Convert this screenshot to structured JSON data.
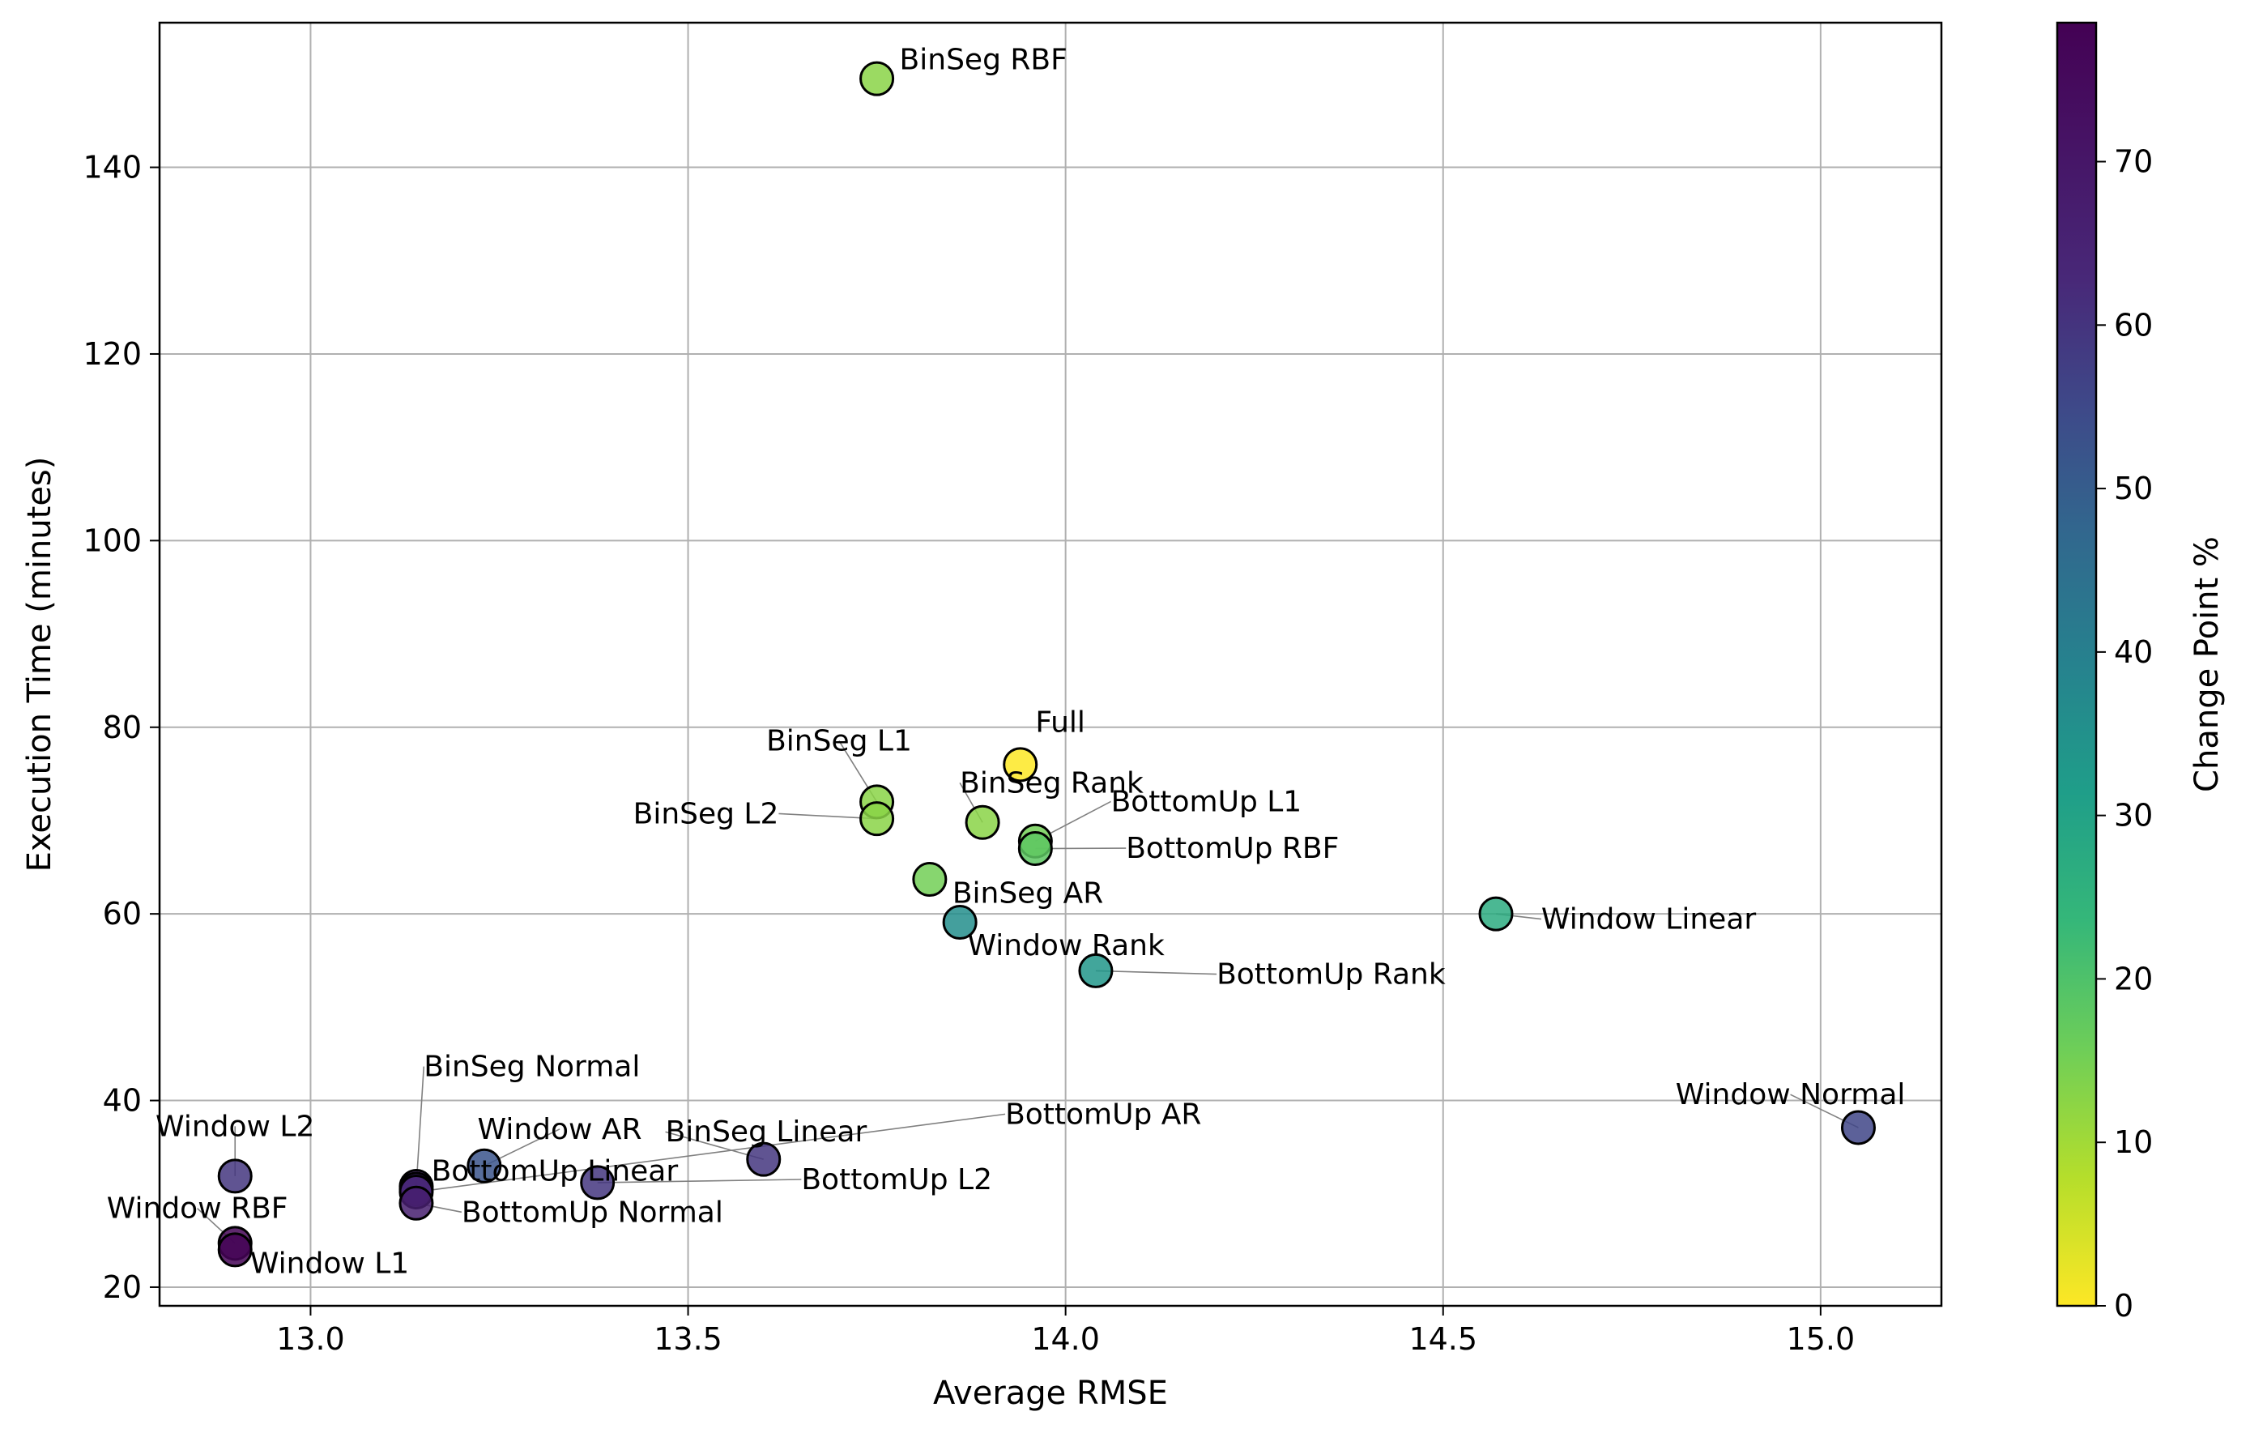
{
  "chart_data": {
    "type": "scatter",
    "xlabel": "Average RMSE",
    "ylabel": "Execution Time (minutes)",
    "xlim": [
      12.8,
      15.16
    ],
    "ylim": [
      18,
      155.5
    ],
    "x_ticks": [
      {
        "value": 13.0,
        "label": "13.0"
      },
      {
        "value": 13.5,
        "label": "13.5"
      },
      {
        "value": 14.0,
        "label": "14.0"
      },
      {
        "value": 14.5,
        "label": "14.5"
      },
      {
        "value": 15.0,
        "label": "15.0"
      }
    ],
    "y_ticks": [
      {
        "value": 20,
        "label": "20"
      },
      {
        "value": 40,
        "label": "40"
      },
      {
        "value": 60,
        "label": "60"
      },
      {
        "value": 80,
        "label": "80"
      },
      {
        "value": 100,
        "label": "100"
      },
      {
        "value": 120,
        "label": "120"
      },
      {
        "value": 140,
        "label": "140"
      }
    ],
    "grid": true,
    "colorbar": {
      "label": "Change Point %",
      "colormap": "viridis_r",
      "range": [
        0,
        78.5
      ],
      "ticks": [
        {
          "value": 0,
          "label": "0"
        },
        {
          "value": 10,
          "label": "10"
        },
        {
          "value": 20,
          "label": "20"
        },
        {
          "value": 30,
          "label": "30"
        },
        {
          "value": 40,
          "label": "40"
        },
        {
          "value": 50,
          "label": "50"
        },
        {
          "value": 60,
          "label": "60"
        },
        {
          "value": 70,
          "label": "70"
        }
      ]
    },
    "points": [
      {
        "label": "Full",
        "x": 13.94,
        "y": 76.0,
        "change_point_pct": 0,
        "label_anchor": [
          13.96,
          79.5
        ],
        "label_side": "right"
      },
      {
        "label": "BinSeg RBF",
        "x": 13.75,
        "y": 149.5,
        "change_point_pct": 14,
        "label_anchor": [
          13.78,
          150.5
        ],
        "label_side": "right"
      },
      {
        "label": "BinSeg L1",
        "x": 13.75,
        "y": 72.0,
        "change_point_pct": 14,
        "label_anchor": [
          13.7,
          77.5
        ],
        "label_side": "center"
      },
      {
        "label": "BinSeg Rank",
        "x": 13.89,
        "y": 69.8,
        "change_point_pct": 14,
        "label_anchor": [
          13.86,
          73.0
        ],
        "label_side": "right"
      },
      {
        "label": "BinSeg L2",
        "x": 13.75,
        "y": 70.2,
        "change_point_pct": 14,
        "label_anchor": [
          13.62,
          69.7
        ],
        "label_side": "left"
      },
      {
        "label": "BottomUp L1",
        "x": 13.96,
        "y": 67.8,
        "change_point_pct": 17,
        "label_anchor": [
          14.06,
          71.0
        ],
        "label_side": "right"
      },
      {
        "label": "BottomUp RBF",
        "x": 13.96,
        "y": 67.0,
        "change_point_pct": 20,
        "label_anchor": [
          14.08,
          66.0
        ],
        "label_side": "right"
      },
      {
        "label": "BinSeg AR",
        "x": 13.82,
        "y": 63.7,
        "change_point_pct": 17,
        "label_anchor": [
          13.85,
          61.2
        ],
        "label_side": "right"
      },
      {
        "label": "Window Rank",
        "x": 13.86,
        "y": 59.1,
        "change_point_pct": 40,
        "label_anchor": [
          13.87,
          55.6
        ],
        "label_side": "right"
      },
      {
        "label": "BottomUp Rank",
        "x": 14.04,
        "y": 53.9,
        "change_point_pct": 37,
        "label_anchor": [
          14.2,
          52.5
        ],
        "label_side": "right"
      },
      {
        "label": "Window Linear",
        "x": 14.57,
        "y": 60.0,
        "change_point_pct": 30,
        "label_anchor": [
          14.63,
          58.4
        ],
        "label_side": "right"
      },
      {
        "label": "Window Normal",
        "x": 15.05,
        "y": 37.1,
        "change_point_pct": 62,
        "label_anchor": [
          14.96,
          39.6
        ],
        "label_side": "center"
      },
      {
        "label": "BinSeg Normal",
        "x": 13.14,
        "y": 30.8,
        "change_point_pct": 72,
        "label_anchor": [
          13.15,
          42.6
        ],
        "label_side": "right"
      },
      {
        "label": "Window AR",
        "x": 13.23,
        "y": 33.0,
        "change_point_pct": 58,
        "label_anchor": [
          13.33,
          35.9
        ],
        "label_side": "center"
      },
      {
        "label": "BottomUp Linear",
        "x": 13.14,
        "y": 30.5,
        "change_point_pct": 70,
        "label_anchor": [
          13.16,
          31.4
        ],
        "label_side": "right"
      },
      {
        "label": "BinSeg Linear",
        "x": 13.6,
        "y": 33.7,
        "change_point_pct": 66,
        "label_anchor": [
          13.47,
          35.6
        ],
        "label_side": "right"
      },
      {
        "label": "BottomUp AR",
        "x": 13.14,
        "y": 30.2,
        "change_point_pct": 70,
        "label_anchor": [
          13.92,
          37.5
        ],
        "label_side": "right"
      },
      {
        "label": "BottomUp L2",
        "x": 13.38,
        "y": 31.2,
        "change_point_pct": 66,
        "label_anchor": [
          13.65,
          30.5
        ],
        "label_side": "right"
      },
      {
        "label": "BottomUp Normal",
        "x": 13.14,
        "y": 29.0,
        "change_point_pct": 72,
        "label_anchor": [
          13.2,
          27.0
        ],
        "label_side": "right"
      },
      {
        "label": "Window L2",
        "x": 12.9,
        "y": 31.9,
        "change_point_pct": 66,
        "label_anchor": [
          12.9,
          36.2
        ],
        "label_side": "center"
      },
      {
        "label": "Window RBF",
        "x": 12.9,
        "y": 24.7,
        "change_point_pct": 78,
        "label_anchor": [
          12.85,
          27.4
        ],
        "label_side": "center"
      },
      {
        "label": "Window L1",
        "x": 12.9,
        "y": 24.0,
        "change_point_pct": 78,
        "label_anchor": [
          12.92,
          21.5
        ],
        "label_side": "right"
      }
    ]
  }
}
